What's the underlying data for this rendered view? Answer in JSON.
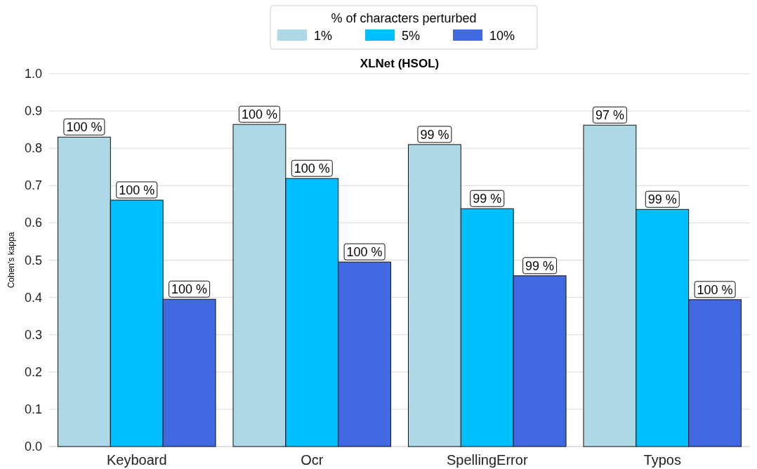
{
  "chart_data": {
    "type": "bar",
    "title": "XLNet (HSOL)",
    "ylabel": "Cohen's kappa",
    "legend_title": "% of characters perturbed",
    "categories": [
      "Keyboard",
      "Ocr",
      "SpellingError",
      "Typos"
    ],
    "series": [
      {
        "name": "1%",
        "color": "#add8e6",
        "values": [
          0.83,
          0.864,
          0.81,
          0.862
        ]
      },
      {
        "name": "5%",
        "color": "#00bfff",
        "values": [
          0.661,
          0.719,
          0.638,
          0.636
        ]
      },
      {
        "name": "10%",
        "color": "#4169e1",
        "values": [
          0.395,
          0.495,
          0.458,
          0.394
        ]
      }
    ],
    "annotations": [
      "100 %",
      "100 %",
      "99 %",
      "97 %",
      "100 %",
      "100 %",
      "99 %",
      "99 %",
      "100 %",
      "100 %",
      "99 %",
      "100 %"
    ],
    "ylim": [
      0,
      1
    ],
    "yticks": [
      {
        "value": 0,
        "label": "0.0"
      },
      {
        "value": 0.1,
        "label": "0.1"
      },
      {
        "value": 0.2,
        "label": "0.2"
      },
      {
        "value": 0.3,
        "label": "0.3"
      },
      {
        "value": 0.4,
        "label": "0.4"
      },
      {
        "value": 0.5,
        "label": "0.5"
      },
      {
        "value": 0.6,
        "label": "0.6"
      },
      {
        "value": 0.7,
        "label": "0.7"
      },
      {
        "value": 0.8,
        "label": "0.8"
      },
      {
        "value": 0.9,
        "label": "0.9"
      },
      {
        "value": 1,
        "label": "1.0"
      }
    ],
    "grid": "y",
    "legend": "top"
  }
}
